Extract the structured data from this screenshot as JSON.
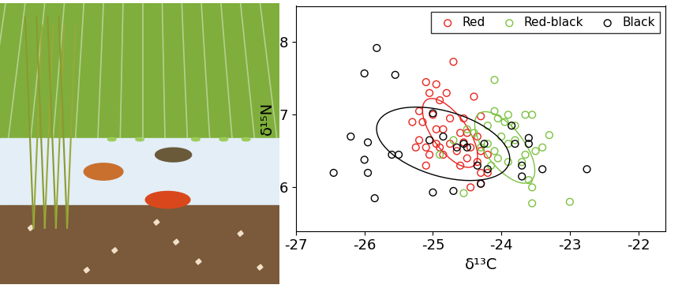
{
  "chart_data": {
    "type": "scatter",
    "x_label": "δ¹³C",
    "y_label": "δ¹⁵N",
    "xlim": [
      -27,
      -21.6
    ],
    "ylim": [
      5.4,
      8.5
    ],
    "xticks": [
      -27,
      -26,
      -25,
      -24,
      -23,
      -22
    ],
    "yticks": [
      6,
      7,
      8
    ],
    "legend": "upper right",
    "marker": "circle",
    "series": [
      {
        "name": "Red",
        "color": "#e8251f",
        "x": [
          -24.7,
          -25.1,
          -24.95,
          -25.05,
          -24.8,
          -24.9,
          -24.4,
          -25.2,
          -25.0,
          -24.75,
          -24.55,
          -24.3,
          -25.15,
          -25.3,
          -24.95,
          -24.85,
          -24.6,
          -24.5,
          -24.35,
          -25.2,
          -24.95,
          -24.75,
          -24.55,
          -24.45,
          -25.1,
          -24.9,
          -24.65,
          -24.3,
          -24.2,
          -25.05,
          -24.85,
          -24.5,
          -24.35,
          -24.2,
          -24.6,
          -24.3,
          -24.45,
          -24.3,
          -25.1,
          -25.25
        ],
        "y": [
          7.73,
          7.45,
          7.42,
          7.3,
          7.3,
          7.2,
          7.25,
          7.05,
          7.0,
          6.95,
          6.95,
          6.98,
          6.9,
          6.9,
          6.8,
          6.8,
          6.75,
          6.75,
          6.7,
          6.65,
          6.6,
          6.6,
          6.62,
          6.55,
          6.55,
          6.55,
          6.5,
          6.5,
          6.45,
          6.45,
          6.45,
          6.4,
          6.35,
          6.2,
          6.3,
          6.2,
          6.0,
          6.05,
          6.3,
          6.55
        ],
        "ellipse": {
          "center": [
            -24.75,
            6.75
          ],
          "width": 1.14,
          "height": 0.5,
          "angle": -52
        }
      },
      {
        "name": "Red-black",
        "color": "#7cc242",
        "x": [
          -24.1,
          -24.1,
          -24.05,
          -23.9,
          -23.65,
          -23.55,
          -23.3,
          -23.4,
          -23.5,
          -23.65,
          -23.8,
          -23.9,
          -24.0,
          -24.2,
          -24.1,
          -24.2,
          -23.7,
          -23.6,
          -23.55,
          -23.55,
          -23.0,
          -24.55,
          -23.9,
          -24.05,
          -24.3,
          -24.4,
          -24.5,
          -24.15,
          -23.8,
          -23.95,
          -24.9,
          -24.7
        ],
        "y": [
          7.48,
          7.05,
          6.95,
          7.0,
          7.0,
          7.0,
          6.72,
          6.55,
          6.5,
          6.45,
          6.65,
          6.6,
          6.7,
          6.85,
          6.5,
          6.6,
          6.35,
          6.1,
          6.0,
          5.78,
          5.8,
          5.92,
          6.35,
          6.4,
          6.55,
          6.75,
          6.8,
          6.3,
          6.85,
          6.9,
          6.45,
          6.65
        ],
        "ellipse": {
          "center": [
            -23.95,
            6.55
          ],
          "width": 1.2,
          "height": 0.55,
          "angle": -50
        }
      },
      {
        "name": "Black",
        "color": "#000000",
        "x": [
          -25.82,
          -26.0,
          -25.55,
          -26.2,
          -25.95,
          -26.0,
          -25.95,
          -26.45,
          -25.85,
          -25.6,
          -25.5,
          -25.0,
          -25.0,
          -24.7,
          -25.05,
          -24.55,
          -24.5,
          -24.3,
          -24.35,
          -24.2,
          -24.25,
          -23.85,
          -23.8,
          -23.6,
          -23.6,
          -23.7,
          -23.7,
          -23.4,
          -22.75,
          -24.85,
          -24.65
        ],
        "y": [
          7.92,
          7.57,
          7.55,
          6.7,
          6.62,
          6.38,
          6.2,
          6.2,
          5.85,
          6.45,
          6.45,
          7.02,
          5.93,
          5.95,
          6.65,
          6.6,
          6.55,
          6.05,
          6.3,
          6.25,
          6.6,
          6.85,
          6.6,
          6.6,
          6.68,
          6.3,
          6.15,
          6.25,
          6.25,
          6.7,
          6.55
        ],
        "ellipse": {
          "center": [
            -24.85,
            6.6
          ],
          "width": 2.0,
          "height": 0.9,
          "angle": -15
        }
      }
    ]
  }
}
